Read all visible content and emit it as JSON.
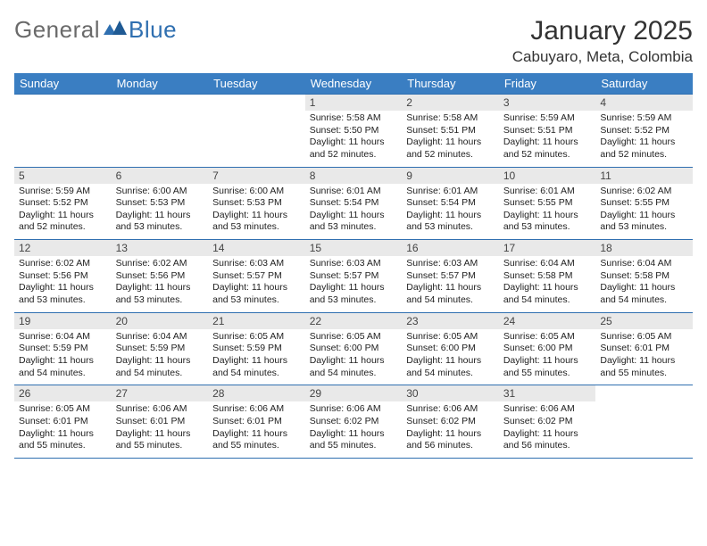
{
  "brand": {
    "word1": "General",
    "word2": "Blue"
  },
  "title": "January 2025",
  "location": "Cabuyaro, Meta, Colombia",
  "colors": {
    "header_bg": "#3a7ec2",
    "header_text": "#ffffff",
    "rule": "#2f6fb0",
    "daynum_bg": "#e9e9e9",
    "body_text": "#222222",
    "logo_grey": "#6a6a6a",
    "logo_blue": "#2f6fb0",
    "page_bg": "#ffffff"
  },
  "font": {
    "title_size": 30,
    "location_size": 17,
    "header_size": 13,
    "body_size": 10.5
  },
  "day_headers": [
    "Sunday",
    "Monday",
    "Tuesday",
    "Wednesday",
    "Thursday",
    "Friday",
    "Saturday"
  ],
  "weeks": [
    [
      {
        "blank": true
      },
      {
        "blank": true
      },
      {
        "blank": true
      },
      {
        "n": "1",
        "sunrise": "5:58 AM",
        "sunset": "5:50 PM",
        "daylight": "11 hours and 52 minutes."
      },
      {
        "n": "2",
        "sunrise": "5:58 AM",
        "sunset": "5:51 PM",
        "daylight": "11 hours and 52 minutes."
      },
      {
        "n": "3",
        "sunrise": "5:59 AM",
        "sunset": "5:51 PM",
        "daylight": "11 hours and 52 minutes."
      },
      {
        "n": "4",
        "sunrise": "5:59 AM",
        "sunset": "5:52 PM",
        "daylight": "11 hours and 52 minutes."
      }
    ],
    [
      {
        "n": "5",
        "sunrise": "5:59 AM",
        "sunset": "5:52 PM",
        "daylight": "11 hours and 52 minutes."
      },
      {
        "n": "6",
        "sunrise": "6:00 AM",
        "sunset": "5:53 PM",
        "daylight": "11 hours and 53 minutes."
      },
      {
        "n": "7",
        "sunrise": "6:00 AM",
        "sunset": "5:53 PM",
        "daylight": "11 hours and 53 minutes."
      },
      {
        "n": "8",
        "sunrise": "6:01 AM",
        "sunset": "5:54 PM",
        "daylight": "11 hours and 53 minutes."
      },
      {
        "n": "9",
        "sunrise": "6:01 AM",
        "sunset": "5:54 PM",
        "daylight": "11 hours and 53 minutes."
      },
      {
        "n": "10",
        "sunrise": "6:01 AM",
        "sunset": "5:55 PM",
        "daylight": "11 hours and 53 minutes."
      },
      {
        "n": "11",
        "sunrise": "6:02 AM",
        "sunset": "5:55 PM",
        "daylight": "11 hours and 53 minutes."
      }
    ],
    [
      {
        "n": "12",
        "sunrise": "6:02 AM",
        "sunset": "5:56 PM",
        "daylight": "11 hours and 53 minutes."
      },
      {
        "n": "13",
        "sunrise": "6:02 AM",
        "sunset": "5:56 PM",
        "daylight": "11 hours and 53 minutes."
      },
      {
        "n": "14",
        "sunrise": "6:03 AM",
        "sunset": "5:57 PM",
        "daylight": "11 hours and 53 minutes."
      },
      {
        "n": "15",
        "sunrise": "6:03 AM",
        "sunset": "5:57 PM",
        "daylight": "11 hours and 53 minutes."
      },
      {
        "n": "16",
        "sunrise": "6:03 AM",
        "sunset": "5:57 PM",
        "daylight": "11 hours and 54 minutes."
      },
      {
        "n": "17",
        "sunrise": "6:04 AM",
        "sunset": "5:58 PM",
        "daylight": "11 hours and 54 minutes."
      },
      {
        "n": "18",
        "sunrise": "6:04 AM",
        "sunset": "5:58 PM",
        "daylight": "11 hours and 54 minutes."
      }
    ],
    [
      {
        "n": "19",
        "sunrise": "6:04 AM",
        "sunset": "5:59 PM",
        "daylight": "11 hours and 54 minutes."
      },
      {
        "n": "20",
        "sunrise": "6:04 AM",
        "sunset": "5:59 PM",
        "daylight": "11 hours and 54 minutes."
      },
      {
        "n": "21",
        "sunrise": "6:05 AM",
        "sunset": "5:59 PM",
        "daylight": "11 hours and 54 minutes."
      },
      {
        "n": "22",
        "sunrise": "6:05 AM",
        "sunset": "6:00 PM",
        "daylight": "11 hours and 54 minutes."
      },
      {
        "n": "23",
        "sunrise": "6:05 AM",
        "sunset": "6:00 PM",
        "daylight": "11 hours and 54 minutes."
      },
      {
        "n": "24",
        "sunrise": "6:05 AM",
        "sunset": "6:00 PM",
        "daylight": "11 hours and 55 minutes."
      },
      {
        "n": "25",
        "sunrise": "6:05 AM",
        "sunset": "6:01 PM",
        "daylight": "11 hours and 55 minutes."
      }
    ],
    [
      {
        "n": "26",
        "sunrise": "6:05 AM",
        "sunset": "6:01 PM",
        "daylight": "11 hours and 55 minutes."
      },
      {
        "n": "27",
        "sunrise": "6:06 AM",
        "sunset": "6:01 PM",
        "daylight": "11 hours and 55 minutes."
      },
      {
        "n": "28",
        "sunrise": "6:06 AM",
        "sunset": "6:01 PM",
        "daylight": "11 hours and 55 minutes."
      },
      {
        "n": "29",
        "sunrise": "6:06 AM",
        "sunset": "6:02 PM",
        "daylight": "11 hours and 55 minutes."
      },
      {
        "n": "30",
        "sunrise": "6:06 AM",
        "sunset": "6:02 PM",
        "daylight": "11 hours and 56 minutes."
      },
      {
        "n": "31",
        "sunrise": "6:06 AM",
        "sunset": "6:02 PM",
        "daylight": "11 hours and 56 minutes."
      },
      {
        "blank": true
      }
    ]
  ],
  "labels": {
    "sunrise": "Sunrise: ",
    "sunset": "Sunset: ",
    "daylight": "Daylight: "
  }
}
